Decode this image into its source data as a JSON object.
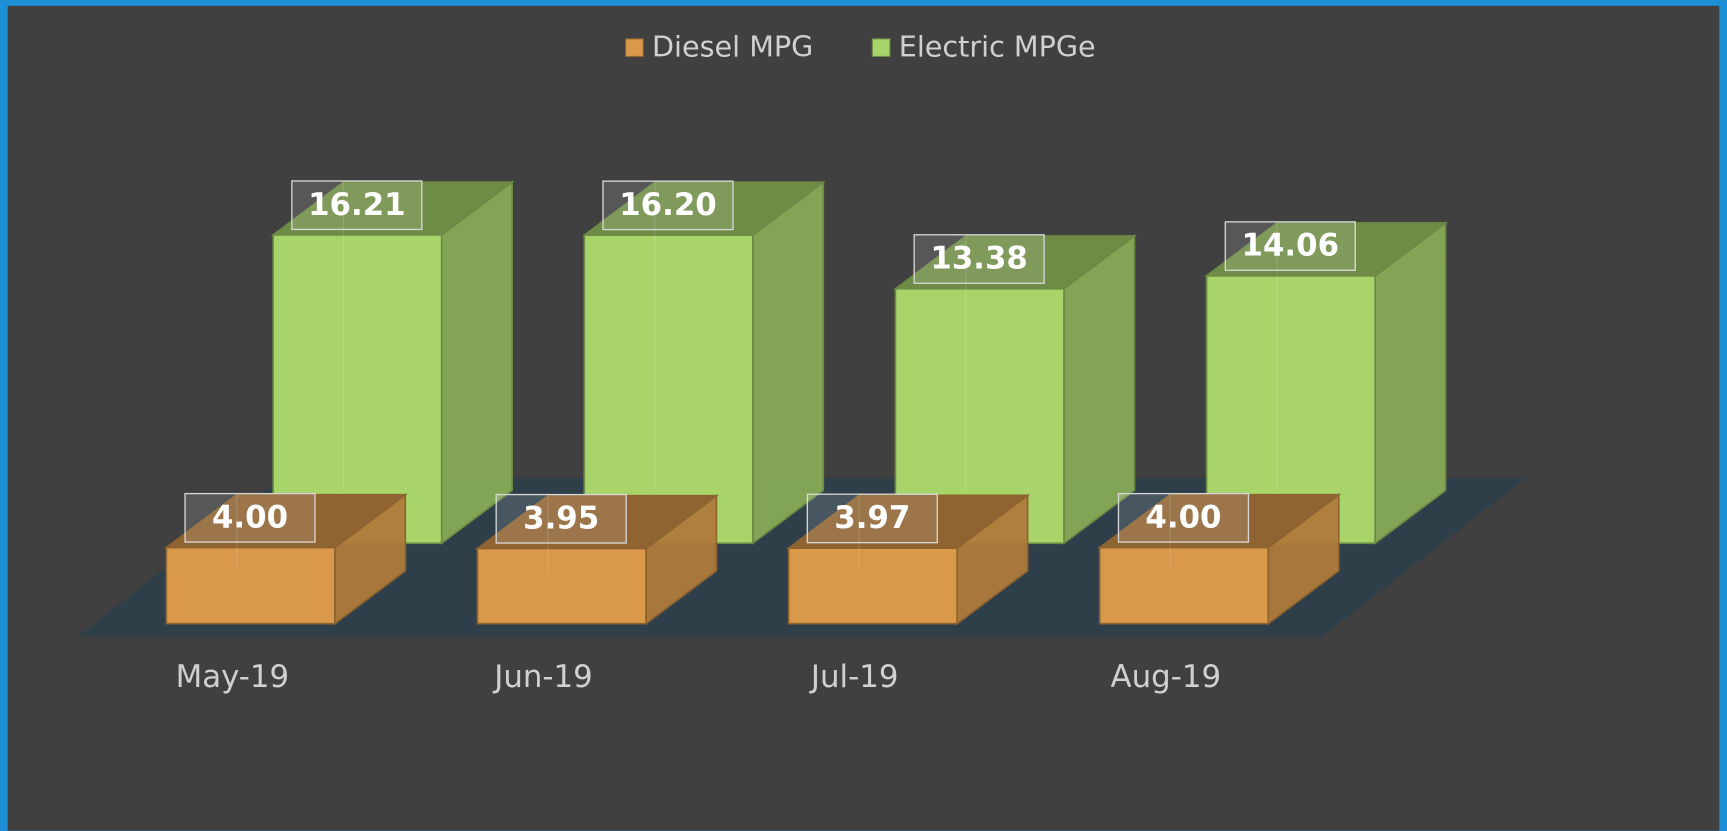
{
  "chart_data": {
    "type": "bar3d",
    "categories": [
      "May-19",
      "Jun-19",
      "Jul-19",
      "Aug-19"
    ],
    "series": [
      {
        "name": "Diesel MPG",
        "color": "#d9984a",
        "values": [
          4.0,
          3.95,
          3.97,
          4.0
        ],
        "value_labels": [
          "4.00",
          "3.95",
          "3.97",
          "4.00"
        ]
      },
      {
        "name": "Electric MPGe",
        "color": "#a8d46a",
        "values": [
          16.21,
          16.2,
          13.38,
          14.06
        ],
        "value_labels": [
          "16.21",
          "16.20",
          "13.38",
          "14.06"
        ]
      }
    ],
    "legend": "top"
  }
}
